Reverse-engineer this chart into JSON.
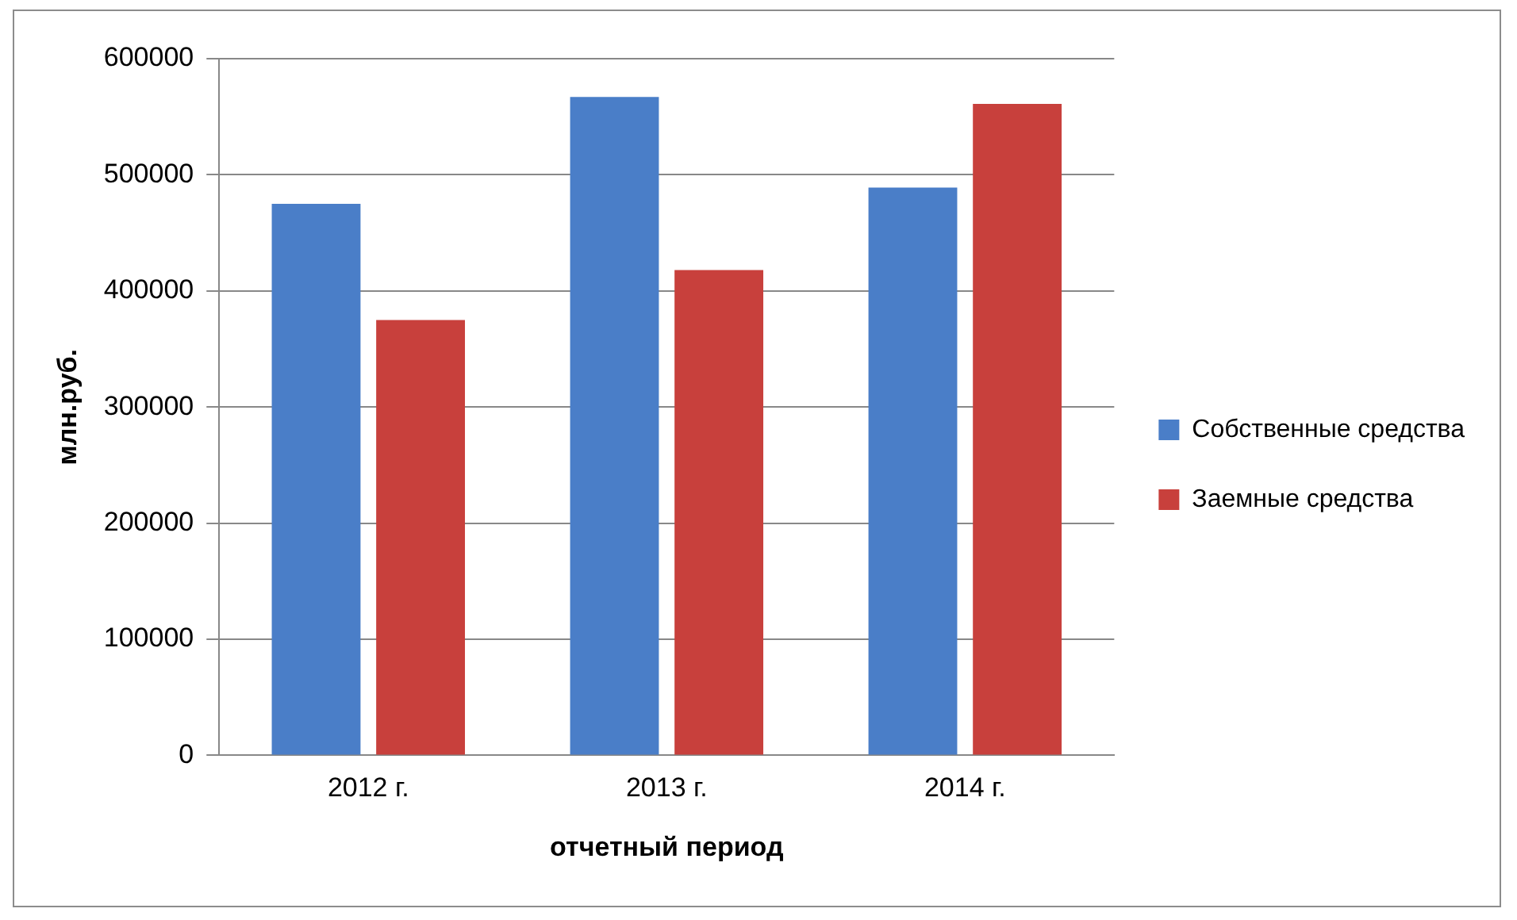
{
  "chart_data": {
    "type": "bar",
    "xlabel": "отчетный период",
    "ylabel": "млн.руб.",
    "categories": [
      "2012 г.",
      "2013 г.",
      "2014 г."
    ],
    "series": [
      {
        "name": "Собственные средства",
        "color": "#4a7ec8",
        "values": [
          475000,
          567000,
          489000
        ]
      },
      {
        "name": "Заемные средства",
        "color": "#c8403c",
        "values": [
          375000,
          418000,
          561000
        ]
      }
    ],
    "ylim": [
      0,
      600000
    ],
    "yticks": [
      0,
      100000,
      200000,
      300000,
      400000,
      500000,
      600000
    ],
    "grid": "y",
    "legend": "right"
  }
}
